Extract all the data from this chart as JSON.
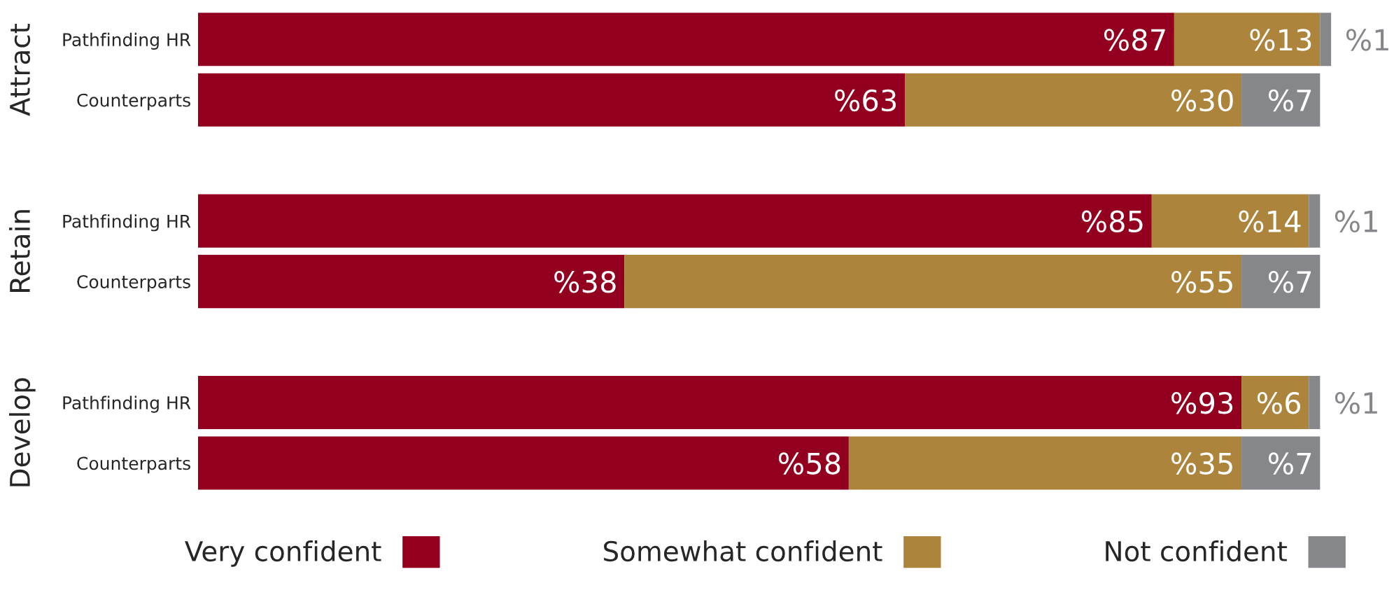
{
  "chart_data": {
    "type": "bar",
    "orientation": "horizontal",
    "stacked": true,
    "categories": [
      "Pathfinding HR",
      "Counterparts",
      null,
      "Pathfinding HR",
      "Counterparts",
      null,
      "Pathfinding HR",
      "Counterparts"
    ],
    "series": [
      {
        "name": "Very confident",
        "color": "#93001f",
        "values": [
          87,
          63,
          null,
          85,
          38,
          null,
          93,
          58
        ],
        "value_labels": [
          "%87",
          "%63",
          null,
          "%85",
          "%38",
          null,
          "%93",
          "%58"
        ]
      },
      {
        "name": "Somewhat confident",
        "color": "#ad843c",
        "values": [
          13,
          30,
          null,
          14,
          55,
          null,
          6,
          35
        ],
        "value_labels": [
          "%13",
          "%30",
          null,
          "%14",
          "%55",
          null,
          "%6",
          "%35"
        ]
      },
      {
        "name": "Not confident",
        "color": "#86878a",
        "values": [
          1,
          7,
          null,
          1,
          7,
          null,
          1,
          7
        ],
        "value_labels": [
          "%1",
          "%7",
          null,
          "%1",
          "%7",
          null,
          "%1",
          "%7"
        ]
      }
    ],
    "xlim": [
      0,
      101
    ],
    "tick_labels": "y",
    "legend": "bottom",
    "grid": false,
    "annotations": [
      "Attract",
      "Retain",
      "Develop"
    ]
  }
}
